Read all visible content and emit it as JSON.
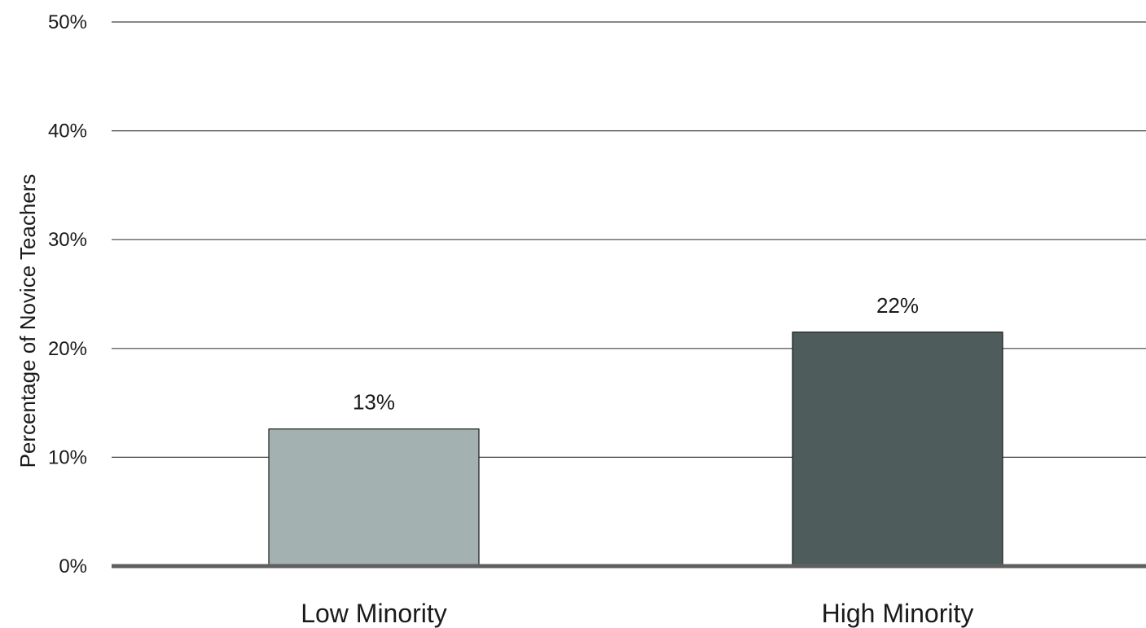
{
  "chart_data": {
    "type": "bar",
    "title": "",
    "xlabel": "",
    "ylabel": "Percentage of Novice Teachers",
    "categories": [
      "Low Minority",
      "High Minority"
    ],
    "values": [
      12.6,
      21.5
    ],
    "data_labels": [
      "13%",
      "22%"
    ],
    "ylim": [
      0,
      50
    ],
    "y_ticks": [
      0,
      10,
      20,
      30,
      40,
      50
    ],
    "y_tick_labels": [
      "0%",
      "10%",
      "20%",
      "30%",
      "40%",
      "50%"
    ],
    "grid": true,
    "legend": "none",
    "bar_colors": [
      "#a3b1b0",
      "#4e5c5b"
    ],
    "bar_edge_color": "#1a1a1a",
    "gridline_color": "#404040",
    "baseline_color": "#5f5f5f"
  }
}
